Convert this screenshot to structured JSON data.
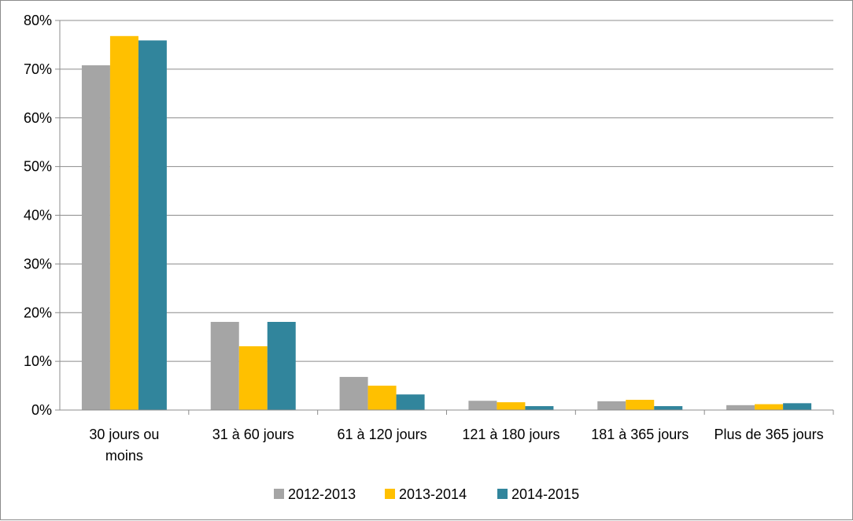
{
  "chart_data": {
    "type": "bar",
    "categories": [
      [
        "30 jours ou",
        "moins"
      ],
      [
        "31 à 60 jours"
      ],
      [
        "61 à 120 jours"
      ],
      [
        "121 à 180 jours"
      ],
      [
        "181 à 365 jours"
      ],
      [
        "Plus de 365 jours"
      ]
    ],
    "series": [
      {
        "name": "2012-2013",
        "color": "#a5a5a5",
        "values": [
          70.8,
          18.1,
          6.8,
          1.9,
          1.8,
          1.0
        ]
      },
      {
        "name": "2013-2014",
        "color": "#ffc000",
        "values": [
          76.8,
          13.1,
          5.0,
          1.6,
          2.1,
          1.2
        ]
      },
      {
        "name": "2014-2015",
        "color": "#31859c",
        "values": [
          75.9,
          18.1,
          3.2,
          0.8,
          0.8,
          1.4
        ]
      }
    ],
    "ylim": [
      0,
      80
    ],
    "y_ticks": [
      "0%",
      "10%",
      "20%",
      "30%",
      "40%",
      "50%",
      "60%",
      "70%",
      "80%"
    ],
    "grid": true,
    "legend_position": "bottom"
  }
}
